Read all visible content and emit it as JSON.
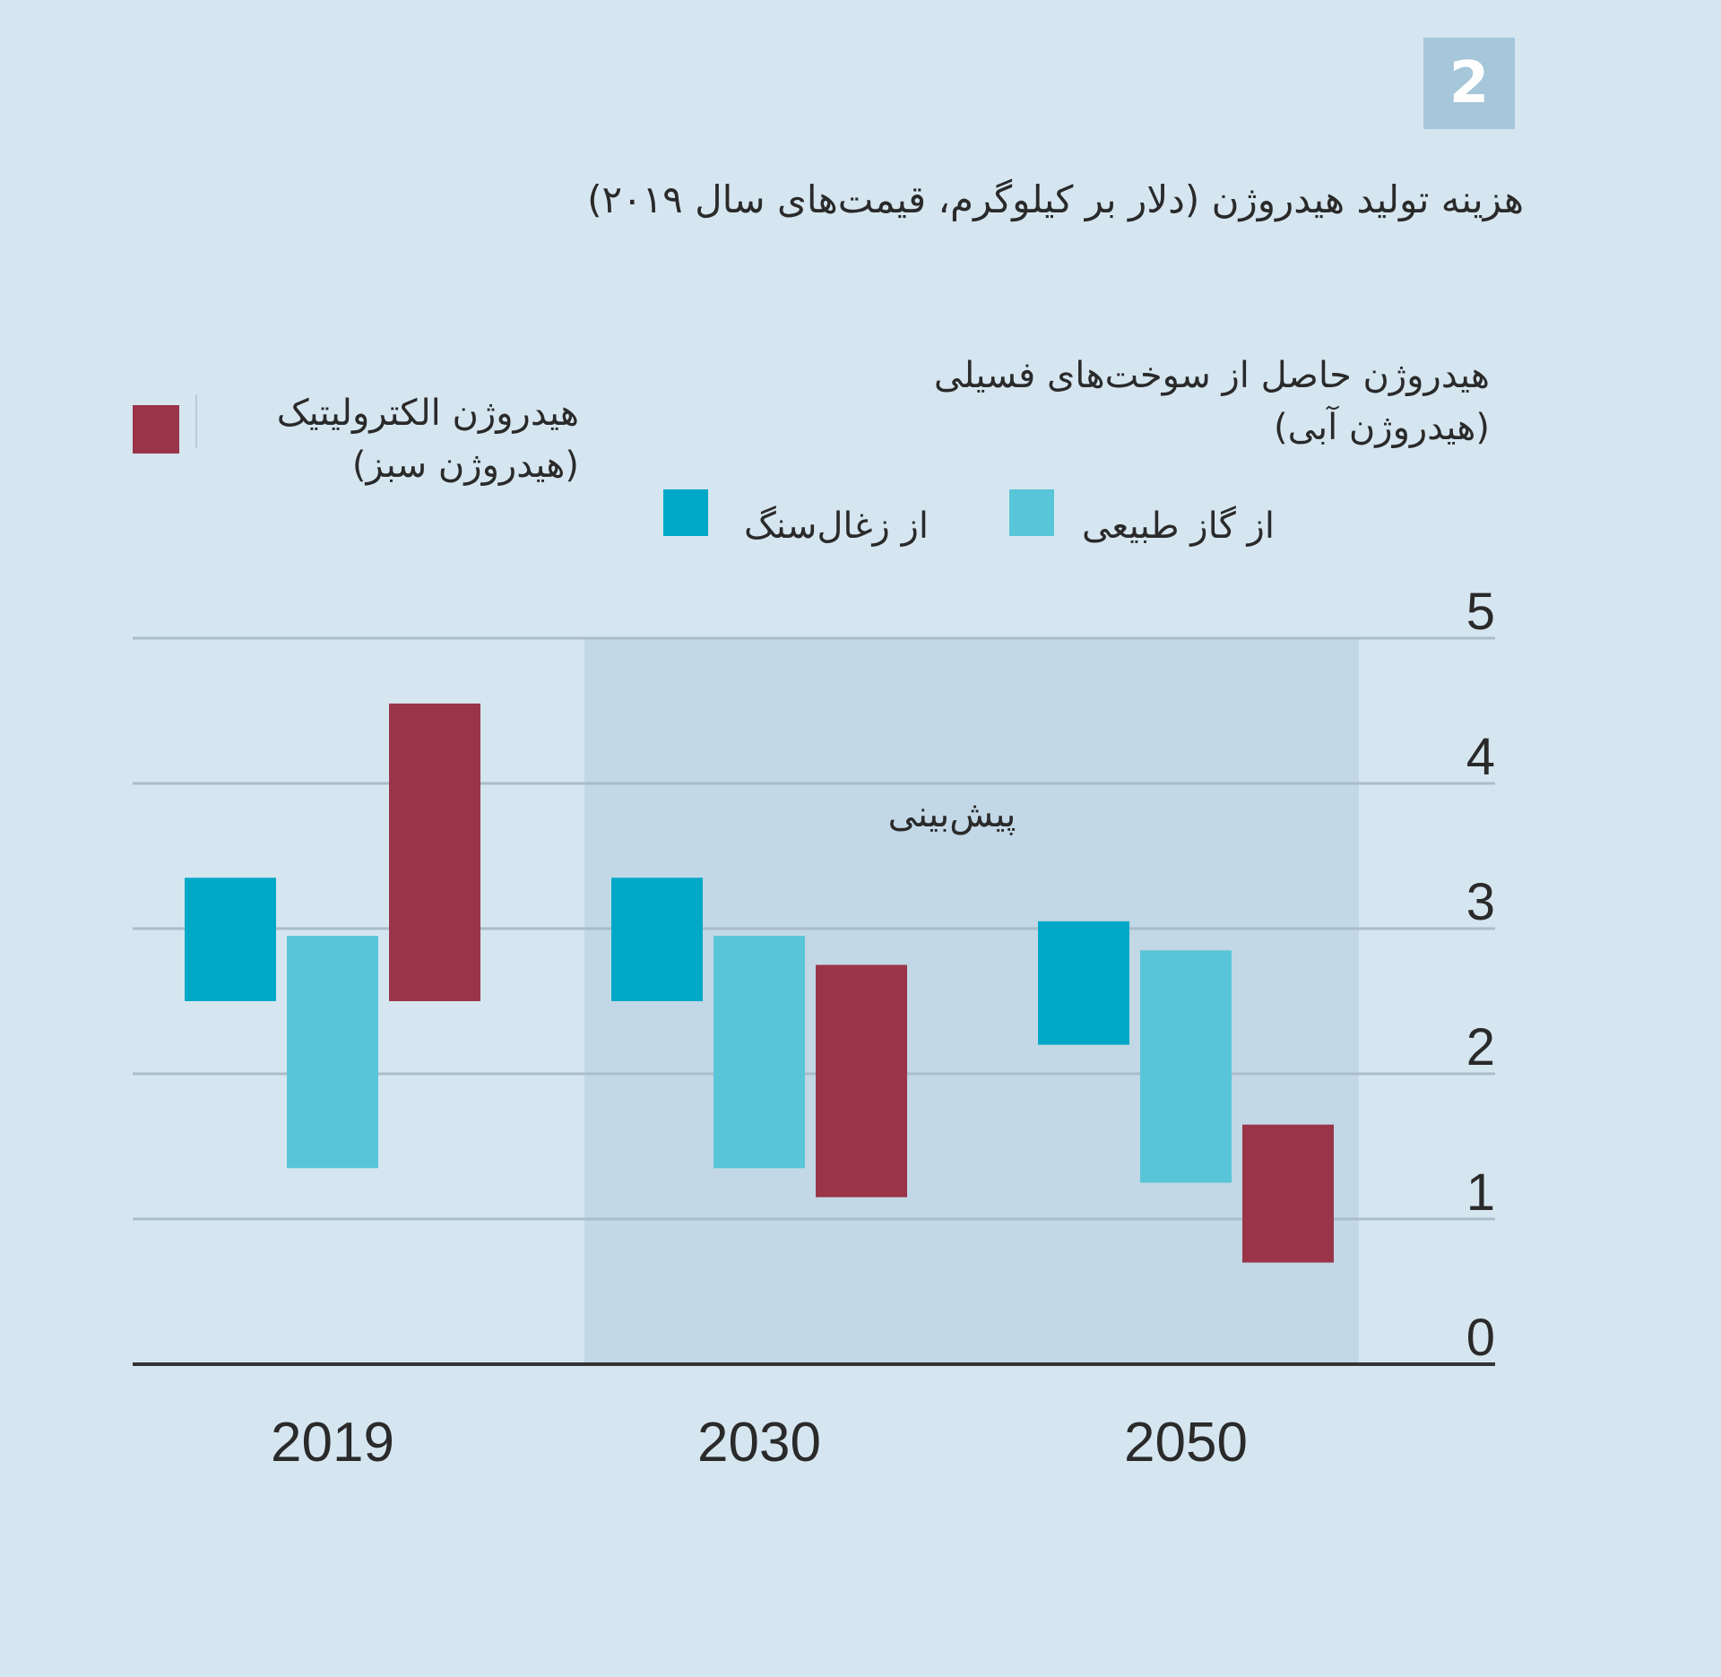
{
  "figure_number": "2",
  "title": "هزینه تولید هیدروژن (دلار بر کیلوگرم، قیمت‌های سال ۲۰۱۹)",
  "legend": {
    "fossil_group_line1": "هیدروژن حاصل از سوخت‌های  فسیلی",
    "fossil_group_line2": "(هیدروژن آبی)",
    "natural_gas": "از گاز طبیعی",
    "coal": "از زغال‌سنگ",
    "electrolytic_line1": "هیدروژن الکترولیتیک",
    "electrolytic_line2": "(هیدروژن سبز)"
  },
  "colors": {
    "coal": "#00a8c8",
    "natural_gas": "#58c6d8",
    "electrolytic": "#9a3549",
    "forecast_bg": "#c2d8e6",
    "grid": "#a9bdca",
    "axis": "#333333"
  },
  "chart_data": {
    "type": "floating-bar",
    "title": "هزینه تولید هیدروژن (دلار بر کیلوگرم، قیمت‌های سال ۲۰۱۹)",
    "categories": [
      "2019",
      "2030",
      "2050"
    ],
    "ylim": [
      0,
      5
    ],
    "yticks": [
      0,
      1,
      2,
      3,
      4,
      5
    ],
    "grid": true,
    "forecast_label": "پیش‌بینی",
    "forecast_categories": [
      "2030",
      "2050"
    ],
    "series": [
      {
        "key": "coal",
        "name": "از زغال‌سنگ",
        "ranges": [
          [
            2.5,
            3.35
          ],
          [
            2.5,
            3.35
          ],
          [
            2.2,
            3.05
          ]
        ]
      },
      {
        "key": "natural_gas",
        "name": "از گاز طبیعی",
        "ranges": [
          [
            1.35,
            2.95
          ],
          [
            1.35,
            2.95
          ],
          [
            1.25,
            2.85
          ]
        ]
      },
      {
        "key": "electrolytic",
        "name": "هیدروژن الکترولیتیک (هیدروژن سبز)",
        "ranges": [
          [
            2.5,
            4.55
          ],
          [
            1.15,
            2.75
          ],
          [
            0.7,
            1.65
          ]
        ]
      }
    ]
  }
}
